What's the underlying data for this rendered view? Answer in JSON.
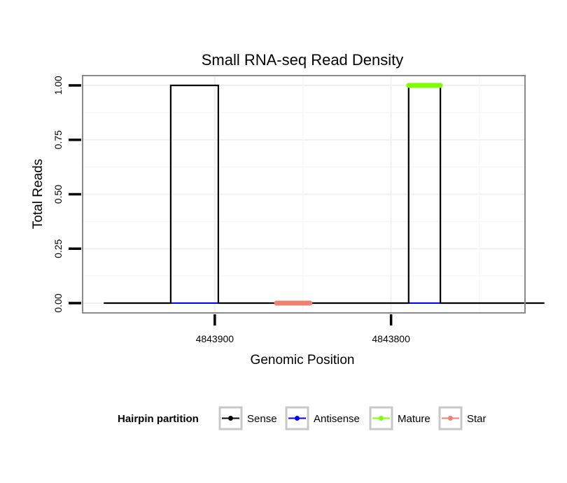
{
  "chart_data": {
    "type": "line",
    "title": "Small RNA-seq Read Density",
    "xlabel": "Genomic Position",
    "ylabel": "Total Reads",
    "x_reversed": true,
    "xlim": [
      4843975,
      4843724
    ],
    "ylim": [
      -0.045,
      1.045
    ],
    "x_ticks": [
      4843900,
      4843800
    ],
    "x_tick_labels": [
      "4843900",
      "4843800"
    ],
    "y_ticks": [
      0,
      0.25,
      0.5,
      0.75,
      1.0
    ],
    "y_tick_labels": [
      "0.00",
      "0.25",
      "0.50",
      "0.75",
      "1.00"
    ],
    "grid": true,
    "legend_title": "Hairpin partition",
    "legend_position": "bottom",
    "series": [
      {
        "name": "Sense",
        "color": "#000000",
        "x": [
          4843963,
          4843925,
          4843925,
          4843898,
          4843898,
          4843790,
          4843790,
          4843772,
          4843772,
          4843713
        ],
        "y": [
          0,
          0,
          1,
          1,
          0,
          0,
          1,
          1,
          0,
          0
        ]
      },
      {
        "name": "Antisense",
        "color": "#0000ff",
        "x": [
          4843925,
          4843898,
          null,
          4843790,
          4843772
        ],
        "y": [
          0,
          0,
          null,
          0,
          0
        ]
      },
      {
        "name": "Mature",
        "color": "#7fff00",
        "x": [
          4843790,
          4843772
        ],
        "y": [
          1,
          1
        ]
      },
      {
        "name": "Star",
        "color": "#f08070",
        "x": [
          4843865,
          4843846
        ],
        "y": [
          0,
          0
        ]
      }
    ]
  }
}
